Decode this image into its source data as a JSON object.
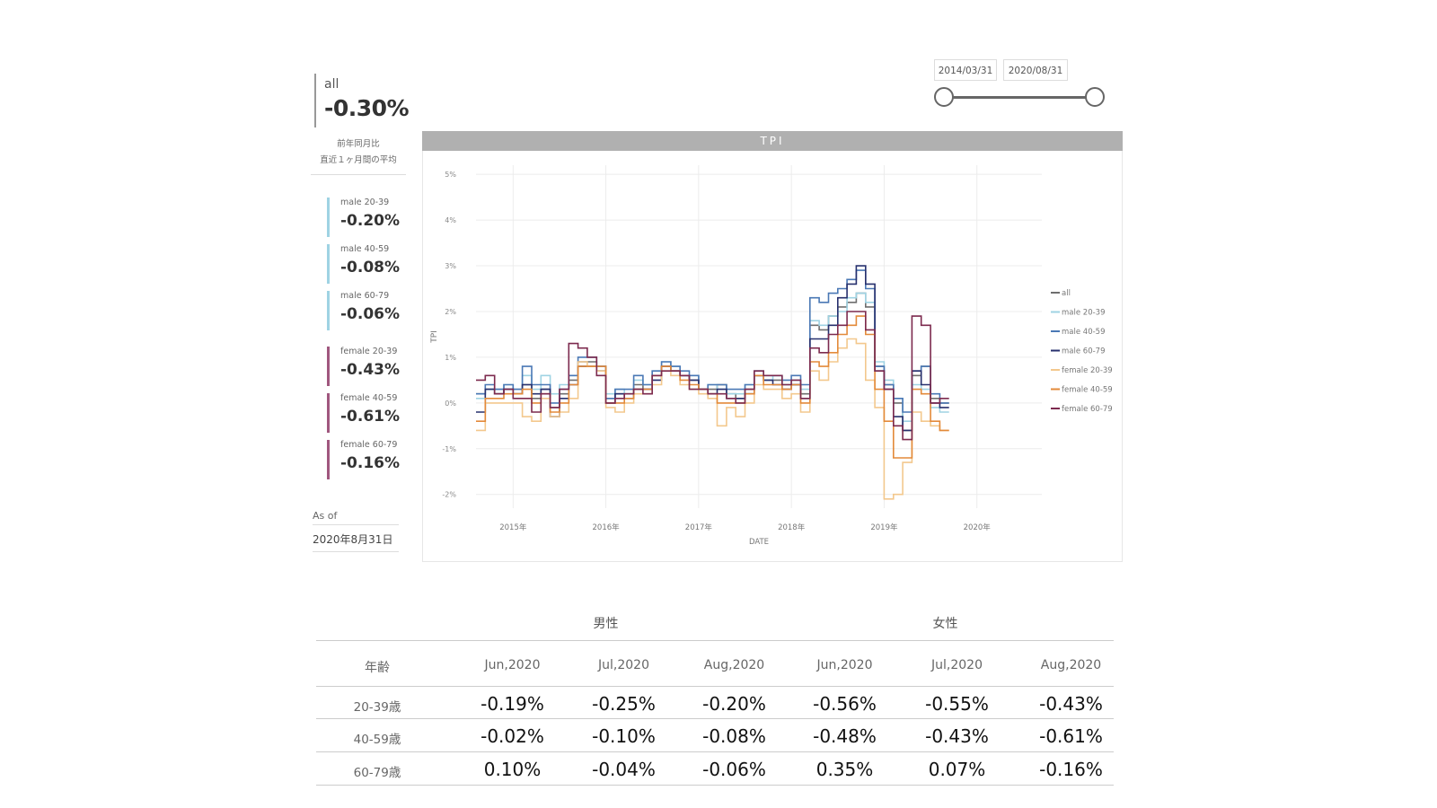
{
  "kpi": {
    "main": {
      "label": "all",
      "value": "-0.30%"
    },
    "note_line1": "前年同月比",
    "note_line2": "直近１ヶ月間の平均",
    "items": [
      {
        "label": "male 20-39",
        "value": "-0.20%",
        "color": "#9fd3e3"
      },
      {
        "label": "male 40-59",
        "value": "-0.08%",
        "color": "#9fd3e3"
      },
      {
        "label": "male 60-79",
        "value": "-0.06%",
        "color": "#9fd3e3"
      },
      {
        "label": "female 20-39",
        "value": "-0.43%",
        "color": "#a0577e"
      },
      {
        "label": "female 40-59",
        "value": "-0.61%",
        "color": "#a0577e"
      },
      {
        "label": "female 60-79",
        "value": "-0.16%",
        "color": "#a0577e"
      }
    ],
    "asof_label": "As of",
    "asof_value": "2020年8月31日"
  },
  "slicer": {
    "start": "2014/03/31",
    "end": "2020/08/31"
  },
  "chart_data": {
    "type": "line",
    "title": "TPI",
    "xlabel": "DATE",
    "ylabel": "TPI",
    "x_ticks": [
      "2015年",
      "2016年",
      "2017年",
      "2018年",
      "2019年",
      "2020年"
    ],
    "y_ticks": [
      "5%",
      "4%",
      "3%",
      "2%",
      "1%",
      "0%",
      "-1%",
      "-2%"
    ],
    "ylim": [
      -2.3,
      5.2
    ],
    "grid": true,
    "legend_position": "right",
    "step": true,
    "x_start": 2014.6,
    "x_end": 2020.7,
    "x_step_years": 0.1,
    "series": [
      {
        "name": "all",
        "color": "#6e6e6e",
        "values": [
          0.2,
          0.3,
          0.2,
          0.3,
          0.2,
          0.4,
          0.1,
          0.3,
          -0.1,
          0.2,
          0.5,
          0.9,
          0.9,
          0.8,
          0.1,
          0.2,
          0.2,
          0.4,
          0.3,
          0.6,
          0.8,
          0.7,
          0.6,
          0.5,
          0.3,
          0.3,
          0.4,
          0.2,
          0.1,
          0.3,
          0.6,
          0.5,
          0.5,
          0.4,
          0.4,
          0.2,
          1.7,
          1.6,
          1.9,
          2.1,
          2.2,
          2.4,
          2.1,
          0.8,
          0.4,
          0.0,
          -0.6,
          0.6,
          0.8,
          0.1,
          0.0
        ]
      },
      {
        "name": "male 20-39",
        "color": "#9fd3e3",
        "values": [
          0.1,
          0.3,
          0.3,
          0.4,
          0.3,
          0.6,
          0.3,
          0.6,
          0.2,
          0.4,
          0.6,
          0.8,
          0.8,
          0.7,
          0.2,
          0.3,
          0.2,
          0.5,
          0.4,
          0.7,
          0.9,
          0.8,
          0.6,
          0.6,
          0.3,
          0.4,
          0.3,
          0.2,
          0.2,
          0.4,
          0.7,
          0.5,
          0.6,
          0.4,
          0.5,
          0.3,
          1.8,
          1.7,
          1.9,
          2.0,
          2.3,
          2.4,
          2.2,
          0.9,
          0.5,
          0.1,
          -0.4,
          0.4,
          0.3,
          -0.1,
          -0.2
        ]
      },
      {
        "name": "male 40-59",
        "color": "#4a78b5",
        "values": [
          0.2,
          0.4,
          0.3,
          0.4,
          0.3,
          0.8,
          0.4,
          0.4,
          0.0,
          0.3,
          0.6,
          1.0,
          1.0,
          0.8,
          0.1,
          0.3,
          0.3,
          0.6,
          0.4,
          0.7,
          0.9,
          0.8,
          0.7,
          0.6,
          0.3,
          0.4,
          0.4,
          0.3,
          0.3,
          0.4,
          0.7,
          0.6,
          0.6,
          0.5,
          0.6,
          0.4,
          2.3,
          2.2,
          2.4,
          2.5,
          2.7,
          2.9,
          2.5,
          0.8,
          0.4,
          0.1,
          -0.2,
          0.7,
          0.8,
          0.2,
          0.0
        ]
      },
      {
        "name": "male 60-79",
        "color": "#27306e",
        "values": [
          -0.2,
          0.3,
          0.2,
          0.3,
          0.2,
          0.4,
          0.2,
          0.3,
          -0.3,
          0.1,
          0.4,
          0.8,
          0.8,
          0.7,
          0.0,
          0.2,
          0.1,
          0.3,
          0.3,
          0.5,
          0.8,
          0.7,
          0.6,
          0.5,
          0.3,
          0.2,
          0.3,
          0.1,
          0.1,
          0.2,
          0.6,
          0.5,
          0.4,
          0.3,
          0.4,
          0.1,
          1.4,
          1.4,
          1.7,
          2.3,
          2.6,
          3.0,
          2.6,
          0.7,
          0.3,
          -0.3,
          -0.6,
          0.7,
          0.4,
          0.0,
          -0.1
        ]
      },
      {
        "name": "female 20-39",
        "color": "#f3c88d",
        "values": [
          -0.6,
          0.0,
          0.0,
          0.0,
          0.0,
          -0.3,
          -0.4,
          0.1,
          -0.3,
          -0.2,
          0.1,
          0.9,
          0.8,
          0.7,
          -0.1,
          -0.2,
          0.0,
          0.2,
          0.2,
          0.4,
          0.7,
          0.6,
          0.4,
          0.3,
          0.2,
          0.1,
          -0.5,
          -0.1,
          -0.3,
          0.0,
          0.4,
          0.3,
          0.3,
          0.1,
          0.2,
          -0.2,
          0.7,
          0.5,
          0.9,
          1.2,
          1.4,
          1.3,
          0.5,
          -0.1,
          -2.1,
          -2.0,
          -1.3,
          -0.2,
          -0.4,
          -0.5,
          -0.6
        ]
      },
      {
        "name": "female 40-59",
        "color": "#e38a3a",
        "values": [
          -0.4,
          0.1,
          0.1,
          0.2,
          0.2,
          0.3,
          0.0,
          0.2,
          -0.2,
          0.0,
          0.4,
          0.8,
          0.8,
          0.8,
          0.0,
          0.0,
          0.1,
          0.3,
          0.3,
          0.6,
          0.8,
          0.7,
          0.5,
          0.4,
          0.3,
          0.2,
          0.0,
          0.0,
          0.0,
          0.2,
          0.6,
          0.4,
          0.4,
          0.3,
          0.4,
          0.0,
          0.9,
          0.8,
          1.1,
          1.5,
          1.7,
          1.9,
          1.5,
          0.3,
          -0.4,
          -1.2,
          -1.2,
          0.3,
          0.2,
          -0.4,
          -0.6
        ]
      },
      {
        "name": "female 60-79",
        "color": "#7c2a4e",
        "values": [
          0.5,
          0.6,
          0.2,
          0.3,
          0.1,
          0.1,
          -0.2,
          0.2,
          -0.1,
          0.3,
          1.3,
          1.2,
          1.0,
          0.6,
          0.0,
          0.1,
          0.2,
          0.3,
          0.2,
          0.6,
          0.7,
          0.7,
          0.6,
          0.3,
          0.3,
          0.2,
          0.2,
          0.1,
          0.0,
          0.3,
          0.7,
          0.6,
          0.6,
          0.4,
          0.5,
          0.1,
          1.2,
          1.1,
          1.5,
          1.7,
          2.0,
          2.0,
          1.6,
          0.7,
          0.3,
          -0.5,
          -0.8,
          1.9,
          1.7,
          0.0,
          0.1
        ]
      }
    ]
  },
  "table": {
    "group_male": "男性",
    "group_female": "女性",
    "age_header": "年齢",
    "months": [
      "Jun,2020",
      "Jul,2020",
      "Aug,2020",
      "Jun,2020",
      "Jul,2020",
      "Aug,2020"
    ],
    "rows": [
      {
        "age": "20-39歳",
        "values": [
          "-0.19%",
          "-0.25%",
          "-0.20%",
          "-0.56%",
          "-0.55%",
          "-0.43%"
        ]
      },
      {
        "age": "40-59歳",
        "values": [
          "-0.02%",
          "-0.10%",
          "-0.08%",
          "-0.48%",
          "-0.43%",
          "-0.61%"
        ]
      },
      {
        "age": "60-79歳",
        "values": [
          "0.10%",
          "-0.04%",
          "-0.06%",
          "0.35%",
          "0.07%",
          "-0.16%"
        ]
      }
    ]
  }
}
